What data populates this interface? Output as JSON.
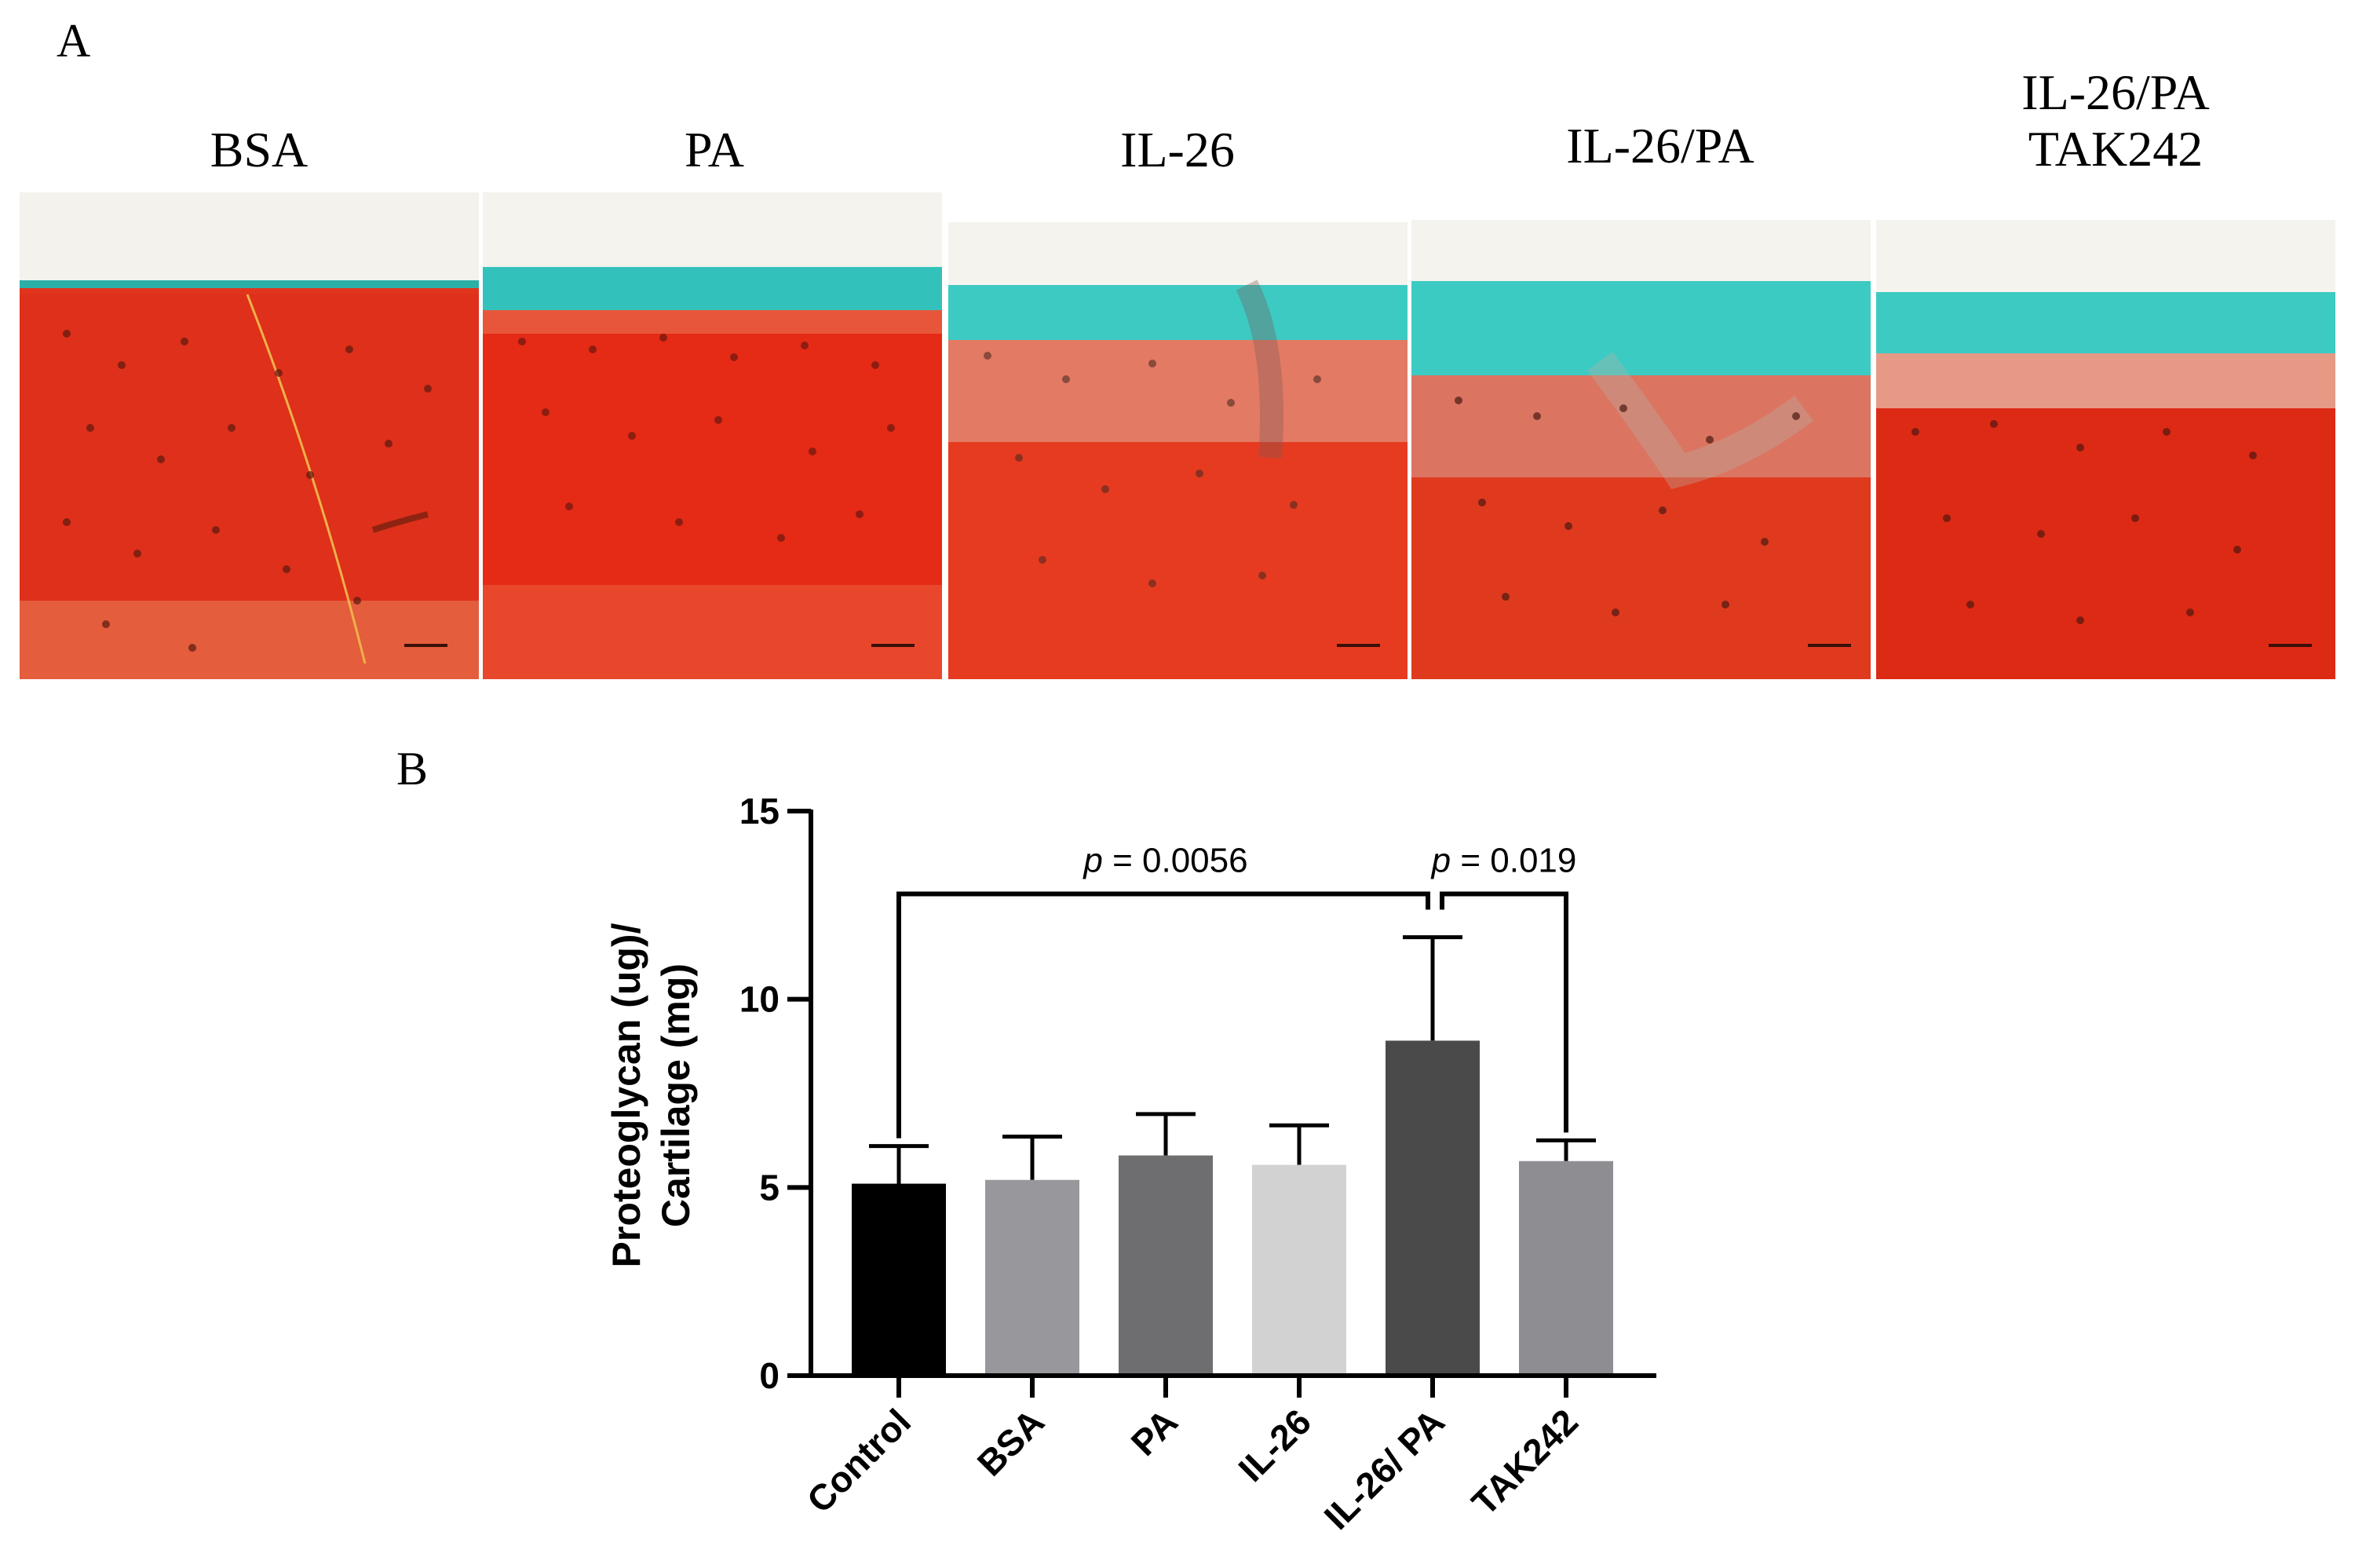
{
  "figure": {
    "panel_a": {
      "letter": "A",
      "images": [
        {
          "label": "BSA"
        },
        {
          "label": "PA"
        },
        {
          "label": "IL-26"
        },
        {
          "label": "IL-26/PA"
        },
        {
          "label": "IL-26/PA",
          "label2": "TAK242"
        }
      ],
      "colors": {
        "cartilage_red": "#e0301a",
        "surface_teal": "#35c9c0",
        "background": "#f2f1ea"
      }
    },
    "panel_b": {
      "letter": "B"
    }
  },
  "chart_data": {
    "type": "bar",
    "title": "",
    "xlabel": "",
    "ylabel_line1": "Proteoglycan (ug)/",
    "ylabel_line2": "Cartilage (mg)",
    "ylim": [
      0,
      15
    ],
    "yticks": [
      0,
      5,
      10,
      15
    ],
    "categories": [
      "Control",
      "BSA",
      "PA",
      "IL-26",
      "IL-26/ PA",
      "TAK242"
    ],
    "values": [
      5.1,
      5.2,
      5.85,
      5.6,
      8.9,
      5.7
    ],
    "errors": [
      1.0,
      1.15,
      1.1,
      1.05,
      2.75,
      0.55
    ],
    "bar_colors": [
      "#000000",
      "#98979c",
      "#6e6e70",
      "#d2d2d2",
      "#4a4a4a",
      "#8e8d92"
    ],
    "annotations": [
      {
        "from": 0,
        "to": 4,
        "p_label": "p",
        "p_value": " = 0.0056",
        "bracket_y": 12.8
      },
      {
        "from": 4,
        "to": 5,
        "p_label": "p",
        "p_value": " = 0.019",
        "bracket_y": 12.8
      }
    ]
  }
}
